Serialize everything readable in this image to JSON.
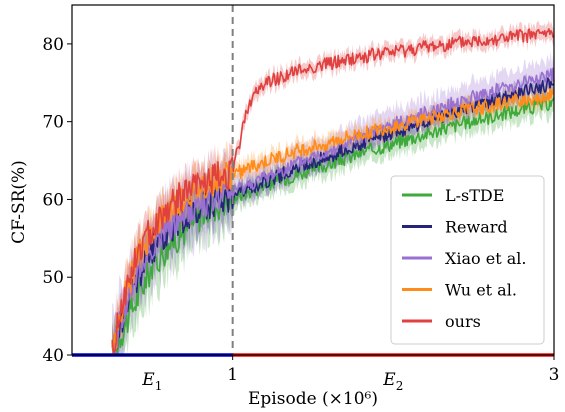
{
  "chart_data": {
    "type": "line",
    "xlabel": "Episode (×10⁶)",
    "ylabel": "CF-SR(%)",
    "xlim": [
      0,
      3
    ],
    "ylim": [
      40,
      85
    ],
    "x_ticks": [
      {
        "value": 1,
        "label": "1"
      },
      {
        "value": 3,
        "label": "3"
      }
    ],
    "y_ticks": [
      {
        "value": 40,
        "label": "40"
      },
      {
        "value": 50,
        "label": "50"
      },
      {
        "value": 60,
        "label": "60"
      },
      {
        "value": 70,
        "label": "70"
      },
      {
        "value": 80,
        "label": "80"
      }
    ],
    "phase_labels": [
      {
        "name": "E",
        "sub": "1",
        "x": 0.5
      },
      {
        "name": "E",
        "sub": "2",
        "x": 2.0
      }
    ],
    "phase_divider_x": 1,
    "phase_bars": [
      {
        "from": 0,
        "to": 1,
        "color": "#0000ee"
      },
      {
        "from": 1,
        "to": 3,
        "color": "#ee1111"
      }
    ],
    "legend_position": "lower right",
    "grid": false,
    "series": [
      {
        "name": "L-sTDE",
        "color": "#3daa3a",
        "band": 1.5,
        "points": [
          [
            0.25,
            40
          ],
          [
            0.3,
            42.5
          ],
          [
            0.4,
            47
          ],
          [
            0.5,
            51.5
          ],
          [
            0.6,
            54
          ],
          [
            0.7,
            56
          ],
          [
            0.8,
            58
          ],
          [
            0.9,
            59.2
          ],
          [
            1.0,
            60.2
          ],
          [
            1.2,
            61.8
          ],
          [
            1.4,
            63.2
          ],
          [
            1.6,
            64.5
          ],
          [
            1.8,
            66
          ],
          [
            2.0,
            67.2
          ],
          [
            2.2,
            68.4
          ],
          [
            2.4,
            69.6
          ],
          [
            2.6,
            70.6
          ],
          [
            2.8,
            71.6
          ],
          [
            3.0,
            72.4
          ]
        ]
      },
      {
        "name": "Reward",
        "color": "#262478",
        "band": 1.2,
        "points": [
          [
            0.25,
            40
          ],
          [
            0.3,
            44
          ],
          [
            0.4,
            49.5
          ],
          [
            0.5,
            53.5
          ],
          [
            0.6,
            56
          ],
          [
            0.7,
            57.8
          ],
          [
            0.8,
            59
          ],
          [
            0.9,
            59.8
          ],
          [
            1.0,
            60.5
          ],
          [
            1.2,
            62.3
          ],
          [
            1.4,
            64
          ],
          [
            1.6,
            65.6
          ],
          [
            1.8,
            67.2
          ],
          [
            2.0,
            68.6
          ],
          [
            2.2,
            70
          ],
          [
            2.4,
            71.4
          ],
          [
            2.6,
            72.6
          ],
          [
            2.8,
            73.8
          ],
          [
            3.0,
            75
          ]
        ]
      },
      {
        "name": "Xiao et al.",
        "color": "#9a70d2",
        "band": 2.0,
        "points": [
          [
            0.25,
            40
          ],
          [
            0.3,
            44.5
          ],
          [
            0.4,
            50
          ],
          [
            0.5,
            54
          ],
          [
            0.6,
            56.5
          ],
          [
            0.7,
            58.2
          ],
          [
            0.8,
            59.4
          ],
          [
            0.9,
            60.2
          ],
          [
            1.0,
            61
          ],
          [
            1.2,
            62.8
          ],
          [
            1.4,
            64.6
          ],
          [
            1.6,
            66.3
          ],
          [
            1.8,
            68
          ],
          [
            2.0,
            69.6
          ],
          [
            2.2,
            71.1
          ],
          [
            2.4,
            72.5
          ],
          [
            2.6,
            73.8
          ],
          [
            2.8,
            75
          ],
          [
            3.0,
            76
          ]
        ]
      },
      {
        "name": "Wu et al.",
        "color": "#ff8c1a",
        "band": 1.2,
        "points": [
          [
            0.25,
            40
          ],
          [
            0.3,
            45.5
          ],
          [
            0.4,
            52
          ],
          [
            0.5,
            56
          ],
          [
            0.6,
            58.5
          ],
          [
            0.7,
            60.2
          ],
          [
            0.8,
            61.5
          ],
          [
            0.9,
            62.5
          ],
          [
            1.0,
            63.2
          ],
          [
            1.2,
            64.8
          ],
          [
            1.4,
            66.2
          ],
          [
            1.6,
            67.3
          ],
          [
            1.8,
            68.4
          ],
          [
            2.0,
            69.4
          ],
          [
            2.2,
            70.4
          ],
          [
            2.4,
            71.2
          ],
          [
            2.6,
            72
          ],
          [
            2.8,
            72.8
          ],
          [
            3.0,
            73.4
          ]
        ]
      },
      {
        "name": "ours",
        "color": "#e04040",
        "band": 1.0,
        "points": [
          [
            0.25,
            40
          ],
          [
            0.3,
            46
          ],
          [
            0.4,
            52.5
          ],
          [
            0.5,
            56.5
          ],
          [
            0.6,
            59
          ],
          [
            0.7,
            60.8
          ],
          [
            0.8,
            62
          ],
          [
            0.9,
            62.8
          ],
          [
            1.0,
            63.5
          ],
          [
            1.05,
            68
          ],
          [
            1.1,
            72.5
          ],
          [
            1.2,
            75
          ],
          [
            1.4,
            76.5
          ],
          [
            1.6,
            77.5
          ],
          [
            1.8,
            78.3
          ],
          [
            2.0,
            79
          ],
          [
            2.2,
            79.6
          ],
          [
            2.4,
            80.1
          ],
          [
            2.6,
            80.6
          ],
          [
            2.8,
            81
          ],
          [
            3.0,
            81.4
          ]
        ]
      }
    ]
  }
}
